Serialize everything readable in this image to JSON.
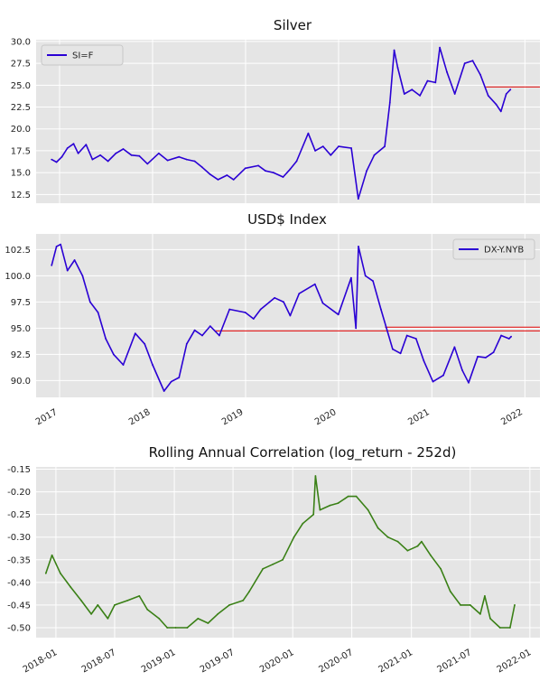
{
  "chart_data": [
    {
      "type": "line",
      "title": "Silver",
      "xlabel": "",
      "ylabel": "",
      "xlim": [
        "2016-10-01",
        "2022-03-01"
      ],
      "ylim": [
        11.5,
        30.2
      ],
      "yticks": [
        "12.5",
        "15.0",
        "17.5",
        "20.0",
        "22.5",
        "25.0",
        "27.5",
        "30.0"
      ],
      "xticks": [],
      "grid": true,
      "legend": "top-left",
      "series": [
        {
          "name": "SI=F",
          "color": "#2a00d4",
          "x": [
            "2016-12-01",
            "2016-12-20",
            "2017-01-10",
            "2017-02-01",
            "2017-02-25",
            "2017-03-15",
            "2017-04-15",
            "2017-05-10",
            "2017-06-10",
            "2017-07-10",
            "2017-08-10",
            "2017-09-08",
            "2017-10-10",
            "2017-11-10",
            "2017-12-12",
            "2018-01-25",
            "2018-03-01",
            "2018-04-15",
            "2018-05-15",
            "2018-06-15",
            "2018-07-15",
            "2018-08-15",
            "2018-09-15",
            "2018-10-20",
            "2018-11-15",
            "2018-12-31",
            "2019-02-20",
            "2019-03-20",
            "2019-04-20",
            "2019-05-28",
            "2019-06-25",
            "2019-07-20",
            "2019-09-04",
            "2019-10-01",
            "2019-11-01",
            "2019-12-01",
            "2020-01-01",
            "2020-02-20",
            "2020-03-18",
            "2020-04-20",
            "2020-05-20",
            "2020-06-30",
            "2020-07-20",
            "2020-08-06",
            "2020-08-20",
            "2020-09-15",
            "2020-10-15",
            "2020-11-15",
            "2020-12-15",
            "2021-01-15",
            "2021-02-01",
            "2021-03-01",
            "2021-04-01",
            "2021-05-10",
            "2021-06-10",
            "2021-07-10",
            "2021-08-10",
            "2021-09-10",
            "2021-09-29",
            "2021-10-20",
            "2021-11-05"
          ],
          "values": [
            16.5,
            16.2,
            16.8,
            17.8,
            18.3,
            17.2,
            18.2,
            16.5,
            17.0,
            16.3,
            17.2,
            17.7,
            17.0,
            16.9,
            16.0,
            17.2,
            16.4,
            16.8,
            16.5,
            16.3,
            15.6,
            14.8,
            14.2,
            14.7,
            14.2,
            15.5,
            15.8,
            15.2,
            15.0,
            14.5,
            15.4,
            16.3,
            19.5,
            17.5,
            18.0,
            17.0,
            18.0,
            17.8,
            12.0,
            15.2,
            17.0,
            18.0,
            23.0,
            29.0,
            27.0,
            24.0,
            24.5,
            23.8,
            25.5,
            25.3,
            29.3,
            26.5,
            24.0,
            27.5,
            27.8,
            26.2,
            23.8,
            22.8,
            22.0,
            24.0,
            24.5
          ]
        }
      ],
      "reference_lines": [
        {
          "y": 24.8,
          "from": "2021-08-01",
          "color": "#e00000"
        }
      ]
    },
    {
      "type": "line",
      "title": "USD$ Index",
      "xlabel": "",
      "ylabel": "",
      "xlim": [
        "2016-10-01",
        "2022-03-01"
      ],
      "ylim": [
        88.4,
        104.0
      ],
      "yticks": [
        "90.0",
        "92.5",
        "95.0",
        "97.5",
        "100.0",
        "102.5"
      ],
      "xticks": [
        "2017",
        "2018",
        "2019",
        "2020",
        "2021",
        "2022"
      ],
      "grid": true,
      "legend": "top-right",
      "series": [
        {
          "name": "DX-Y.NYB",
          "color": "#2a00d4",
          "x": [
            "2016-12-01",
            "2016-12-20",
            "2017-01-05",
            "2017-02-01",
            "2017-03-01",
            "2017-04-01",
            "2017-05-01",
            "2017-06-01",
            "2017-07-01",
            "2017-08-01",
            "2017-09-08",
            "2017-10-25",
            "2017-12-01",
            "2018-01-01",
            "2018-02-15",
            "2018-03-15",
            "2018-04-15",
            "2018-05-15",
            "2018-06-15",
            "2018-07-15",
            "2018-08-15",
            "2018-09-20",
            "2018-10-30",
            "2018-12-31",
            "2019-02-01",
            "2019-03-01",
            "2019-04-25",
            "2019-05-30",
            "2019-06-25",
            "2019-07-30",
            "2019-09-30",
            "2019-10-31",
            "2019-12-31",
            "2020-02-19",
            "2020-03-09",
            "2020-03-19",
            "2020-04-15",
            "2020-05-15",
            "2020-06-15",
            "2020-07-31",
            "2020-08-31",
            "2020-09-25",
            "2020-10-31",
            "2020-11-30",
            "2021-01-05",
            "2021-02-15",
            "2021-03-31",
            "2021-04-30",
            "2021-05-25",
            "2021-06-30",
            "2021-07-31",
            "2021-08-31",
            "2021-09-30",
            "2021-10-31",
            "2021-11-08"
          ],
          "values": [
            101.0,
            102.8,
            103.0,
            100.5,
            101.5,
            100.0,
            97.5,
            96.5,
            94.0,
            92.5,
            91.5,
            94.5,
            93.5,
            91.5,
            89.0,
            89.9,
            90.3,
            93.5,
            94.8,
            94.3,
            95.2,
            94.3,
            96.8,
            96.5,
            95.9,
            96.8,
            97.9,
            97.5,
            96.2,
            98.3,
            99.2,
            97.4,
            96.3,
            99.8,
            95.0,
            102.8,
            100.0,
            99.5,
            96.8,
            93.0,
            92.6,
            94.3,
            94.0,
            91.9,
            89.9,
            90.5,
            93.2,
            91.0,
            89.8,
            92.3,
            92.2,
            92.7,
            94.3,
            94.0,
            94.2
          ]
        }
      ],
      "reference_lines": [
        {
          "y": 95.1,
          "from": "2020-07-01",
          "color": "#e00000"
        },
        {
          "y": 94.75,
          "from": "2018-09-01",
          "color": "#e00000"
        }
      ]
    },
    {
      "type": "line",
      "title": "Rolling Annual Correlation (log_return - 252d)",
      "xlabel": "",
      "ylabel": "",
      "xlim": [
        "2017-11-01",
        "2022-02-01"
      ],
      "ylim": [
        -0.522,
        -0.145
      ],
      "yticks": [
        "-0.50",
        "-0.45",
        "-0.40",
        "-0.35",
        "-0.30",
        "-0.25",
        "-0.20",
        "-0.15"
      ],
      "xticks": [
        "2018-01",
        "2018-07",
        "2019-01",
        "2019-07",
        "2020-01",
        "2020-07",
        "2021-01",
        "2021-07",
        "2022-01"
      ],
      "grid": true,
      "legend": "none",
      "series": [
        {
          "name": "",
          "color": "#3a8016",
          "x": [
            "2017-12-01",
            "2017-12-20",
            "2018-01-15",
            "2018-02-15",
            "2018-03-20",
            "2018-04-20",
            "2018-05-10",
            "2018-06-10",
            "2018-07-01",
            "2018-08-10",
            "2018-09-15",
            "2018-10-10",
            "2018-11-15",
            "2018-12-10",
            "2019-01-05",
            "2019-02-10",
            "2019-03-15",
            "2019-04-15",
            "2019-05-15",
            "2019-06-20",
            "2019-08-01",
            "2019-08-20",
            "2019-10-01",
            "2019-11-01",
            "2019-12-01",
            "2020-01-05",
            "2020-02-01",
            "2020-03-05",
            "2020-03-11",
            "2020-03-25",
            "2020-04-25",
            "2020-05-20",
            "2020-06-20",
            "2020-07-15",
            "2020-08-20",
            "2020-09-20",
            "2020-10-20",
            "2020-11-20",
            "2020-12-20",
            "2021-01-20",
            "2021-02-01",
            "2021-03-01",
            "2021-04-01",
            "2021-05-01",
            "2021-06-01",
            "2021-07-01",
            "2021-08-01",
            "2021-08-15",
            "2021-09-01",
            "2021-10-01",
            "2021-11-01",
            "2021-11-15"
          ],
          "values": [
            -0.38,
            -0.34,
            -0.38,
            -0.41,
            -0.44,
            -0.47,
            -0.45,
            -0.48,
            -0.45,
            -0.44,
            -0.43,
            -0.46,
            -0.48,
            -0.5,
            -0.5,
            -0.5,
            -0.48,
            -0.49,
            -0.47,
            -0.45,
            -0.44,
            -0.42,
            -0.37,
            -0.36,
            -0.35,
            -0.3,
            -0.27,
            -0.25,
            -0.165,
            -0.24,
            -0.23,
            -0.225,
            -0.21,
            -0.21,
            -0.24,
            -0.28,
            -0.3,
            -0.31,
            -0.33,
            -0.32,
            -0.31,
            -0.34,
            -0.37,
            -0.42,
            -0.45,
            -0.45,
            -0.47,
            -0.43,
            -0.48,
            -0.5,
            -0.5,
            -0.45
          ]
        }
      ],
      "reference_lines": []
    }
  ]
}
